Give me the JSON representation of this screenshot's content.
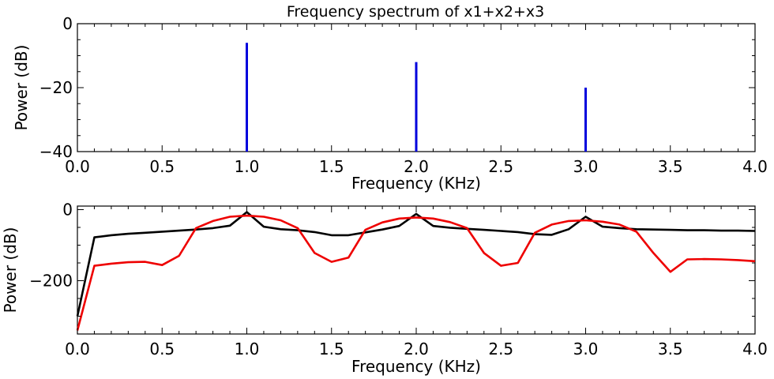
{
  "chart_data": [
    {
      "type": "bar",
      "title": "Frequency spectrum of x1+x2+x3",
      "xlabel": "Frequency (KHz)",
      "ylabel": "Power (dB)",
      "xlim": [
        0,
        4
      ],
      "ylim": [
        -40,
        0
      ],
      "xticks": [
        "0.0",
        "0.5",
        "1.0",
        "1.5",
        "2.0",
        "2.5",
        "3.0",
        "3.5",
        "4.0"
      ],
      "yticks": [
        "−40",
        "−20",
        "0"
      ],
      "bar_color": "#0000dd",
      "x": [
        1.0,
        2.0,
        3.0
      ],
      "values": [
        -6.0,
        -12.0,
        -20.0
      ]
    },
    {
      "type": "line",
      "title": "",
      "xlabel": "Frequency (KHz)",
      "ylabel": "Power (dB)",
      "xlim": [
        0,
        4
      ],
      "ylim": [
        -350,
        10
      ],
      "xticks": [
        "0.0",
        "0.5",
        "1.0",
        "1.5",
        "2.0",
        "2.5",
        "3.0",
        "3.5",
        "4.0"
      ],
      "yticks": [
        "−200",
        "0"
      ],
      "series": [
        {
          "color": "#000000",
          "x": [
            0,
            0.1,
            0.2,
            0.3,
            0.4,
            0.5,
            0.6,
            0.7,
            0.8,
            0.9,
            1.0,
            1.1,
            1.2,
            1.3,
            1.4,
            1.5,
            1.6,
            1.7,
            1.8,
            1.9,
            2.0,
            2.1,
            2.2,
            2.3,
            2.4,
            2.5,
            2.6,
            2.7,
            2.8,
            2.9,
            3.0,
            3.1,
            3.2,
            3.3,
            3.4,
            3.5,
            3.6,
            3.7,
            3.8,
            3.9,
            4.0
          ],
          "values": [
            -300,
            -78,
            -72,
            -68,
            -65,
            -62,
            -59,
            -56,
            -52,
            -45,
            -7,
            -48,
            -55,
            -58,
            -63,
            -72,
            -72,
            -64,
            -56,
            -46,
            -12,
            -46,
            -51,
            -54,
            -57,
            -60,
            -63,
            -69,
            -71,
            -55,
            -20,
            -48,
            -52,
            -55,
            -56,
            -57,
            -58,
            -58,
            -59,
            -59,
            -60
          ]
        },
        {
          "color": "#ee0000",
          "x": [
            0,
            0.1,
            0.2,
            0.3,
            0.4,
            0.5,
            0.6,
            0.7,
            0.8,
            0.9,
            1.0,
            1.1,
            1.2,
            1.3,
            1.4,
            1.5,
            1.6,
            1.7,
            1.8,
            1.9,
            2.0,
            2.1,
            2.2,
            2.3,
            2.4,
            2.5,
            2.6,
            2.7,
            2.8,
            2.9,
            3.0,
            3.1,
            3.2,
            3.3,
            3.4,
            3.5,
            3.6,
            3.7,
            3.8,
            3.9,
            4.0
          ],
          "values": [
            -340,
            -158,
            -152,
            -148,
            -147,
            -156,
            -130,
            -52,
            -32,
            -20,
            -17,
            -20,
            -30,
            -52,
            -122,
            -147,
            -135,
            -57,
            -36,
            -25,
            -22,
            -25,
            -35,
            -52,
            -122,
            -158,
            -150,
            -65,
            -42,
            -32,
            -30,
            -34,
            -42,
            -62,
            -122,
            -175,
            -140,
            -139,
            -140,
            -142,
            -145
          ]
        }
      ]
    }
  ]
}
